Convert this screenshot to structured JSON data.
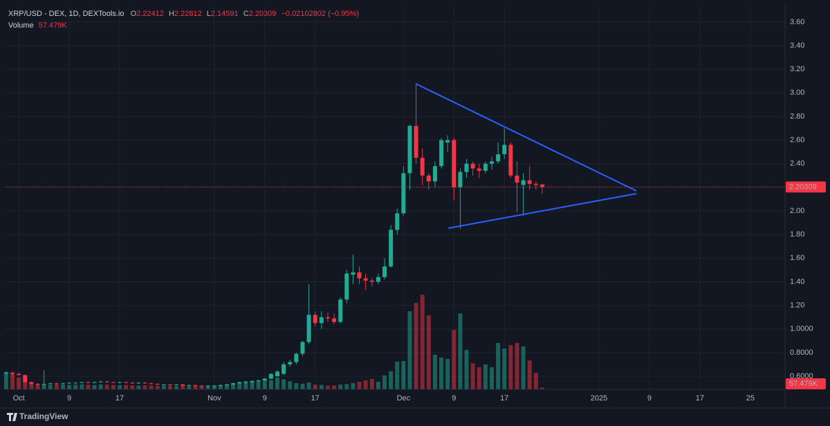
{
  "chart_data": {
    "type": "candlestick",
    "title": "XRP/USD - DEX, 1D, DEXTools.io",
    "ohlc_labels": [
      "O",
      "H",
      "L",
      "C"
    ],
    "change_label": "−0.02102802 (−0.95%)",
    "volume_name": "Volume",
    "volume_label": "57.479K",
    "up_color": "#22ab94",
    "down_color": "#f23645",
    "grid": true,
    "open": [
      0.625,
      0.63,
      0.62,
      0.61,
      0.55,
      0.535,
      0.53,
      0.535,
      0.54,
      0.535,
      0.54,
      0.545,
      0.545,
      0.55,
      0.545,
      0.55,
      0.555,
      0.55,
      0.545,
      0.55,
      0.545,
      0.54,
      0.545,
      0.54,
      0.535,
      0.53,
      0.53,
      0.525,
      0.53,
      0.52,
      0.525,
      0.52,
      0.515,
      0.52,
      0.52,
      0.525,
      0.53,
      0.54,
      0.55,
      0.55,
      0.56,
      0.565,
      0.58,
      0.6,
      0.62,
      0.7,
      0.72,
      0.79,
      0.89,
      1.12,
      1.05,
      1.1,
      1.09,
      1.06,
      1.25,
      1.46,
      1.48,
      1.43,
      1.41,
      1.4,
      1.44,
      1.53,
      1.84,
      1.98,
      2.32,
      2.72,
      2.45,
      2.3,
      2.25,
      2.38,
      2.58,
      2.6,
      2.2,
      2.33,
      2.4,
      2.36,
      2.34,
      2.4,
      2.42,
      2.48,
      2.56,
      2.3,
      2.22,
      2.26,
      2.23,
      2.22412
    ],
    "high": [
      0.64,
      0.64,
      0.63,
      0.615,
      0.555,
      0.54,
      0.65,
      0.545,
      0.545,
      0.545,
      0.55,
      0.55,
      0.555,
      0.555,
      0.555,
      0.56,
      0.56,
      0.555,
      0.555,
      0.555,
      0.55,
      0.55,
      0.55,
      0.545,
      0.54,
      0.535,
      0.535,
      0.535,
      0.535,
      0.53,
      0.53,
      0.525,
      0.525,
      0.525,
      0.53,
      0.535,
      0.545,
      0.555,
      0.56,
      0.565,
      0.57,
      0.585,
      0.625,
      0.65,
      0.72,
      0.74,
      0.8,
      0.9,
      1.38,
      1.15,
      1.15,
      1.14,
      1.13,
      1.27,
      1.5,
      1.63,
      1.53,
      1.47,
      1.43,
      1.47,
      1.6,
      1.88,
      2.02,
      2.38,
      2.73,
      3.08,
      2.53,
      2.32,
      2.42,
      2.62,
      2.64,
      2.62,
      2.36,
      2.44,
      2.42,
      2.4,
      2.42,
      2.46,
      2.58,
      2.7,
      2.58,
      2.42,
      2.32,
      2.38,
      2.25,
      2.22812
    ],
    "low": [
      0.615,
      0.61,
      0.61,
      0.545,
      0.53,
      0.525,
      0.525,
      0.53,
      0.53,
      0.53,
      0.535,
      0.54,
      0.54,
      0.54,
      0.54,
      0.545,
      0.545,
      0.54,
      0.54,
      0.54,
      0.535,
      0.535,
      0.535,
      0.53,
      0.525,
      0.525,
      0.52,
      0.52,
      0.515,
      0.515,
      0.515,
      0.51,
      0.51,
      0.515,
      0.515,
      0.52,
      0.525,
      0.535,
      0.54,
      0.545,
      0.555,
      0.56,
      0.575,
      0.595,
      0.61,
      0.68,
      0.7,
      0.77,
      0.87,
      1.02,
      1.0,
      1.06,
      1.04,
      1.05,
      1.22,
      1.38,
      1.38,
      1.33,
      1.36,
      1.38,
      1.42,
      1.52,
      1.8,
      1.96,
      2.18,
      2.4,
      2.22,
      2.18,
      2.2,
      2.36,
      2.5,
      2.09,
      1.85,
      2.28,
      2.3,
      2.28,
      2.32,
      2.35,
      2.4,
      2.44,
      2.28,
      1.99,
      1.96,
      2.18,
      2.18,
      2.14591
    ],
    "close": [
      0.63,
      0.62,
      0.61,
      0.55,
      0.535,
      0.53,
      0.535,
      0.54,
      0.535,
      0.54,
      0.545,
      0.545,
      0.55,
      0.545,
      0.55,
      0.555,
      0.55,
      0.545,
      0.55,
      0.545,
      0.54,
      0.545,
      0.54,
      0.535,
      0.53,
      0.53,
      0.525,
      0.53,
      0.52,
      0.525,
      0.52,
      0.515,
      0.52,
      0.52,
      0.525,
      0.53,
      0.54,
      0.55,
      0.55,
      0.56,
      0.565,
      0.58,
      0.62,
      0.64,
      0.7,
      0.72,
      0.79,
      0.89,
      1.12,
      1.05,
      1.1,
      1.09,
      1.06,
      1.25,
      1.47,
      1.48,
      1.43,
      1.41,
      1.4,
      1.44,
      1.53,
      1.84,
      1.98,
      2.32,
      2.72,
      2.45,
      2.3,
      2.25,
      2.38,
      2.6,
      2.6,
      2.2,
      2.33,
      2.4,
      2.36,
      2.34,
      2.4,
      2.42,
      2.48,
      2.56,
      2.3,
      2.24,
      2.26,
      2.23,
      2.22,
      2.20309
    ],
    "volume": [
      555000,
      490000,
      380000,
      310000,
      200000,
      180000,
      160000,
      150000,
      160000,
      150000,
      140000,
      150000,
      160000,
      150000,
      140000,
      160000,
      150000,
      140000,
      130000,
      140000,
      130000,
      120000,
      130000,
      120000,
      110000,
      120000,
      110000,
      100000,
      110000,
      100000,
      110000,
      100000,
      110000,
      120000,
      130000,
      160000,
      200000,
      230000,
      260000,
      240000,
      280000,
      330000,
      300000,
      380000,
      320000,
      260000,
      200000,
      180000,
      220000,
      150000,
      140000,
      120000,
      130000,
      150000,
      170000,
      200000,
      245000,
      290000,
      335000,
      245000,
      445000,
      580000,
      890000,
      910000,
      2510000,
      2780000,
      3040000,
      2380000,
      1110000,
      1020000,
      980000,
      1910000,
      2440000,
      1270000,
      840000,
      710000,
      800000,
      710000,
      1490000,
      1310000,
      1420000,
      1490000,
      1380000,
      930000,
      530000,
      57479
    ],
    "xlim": [
      -0.1,
      123.5
    ],
    "xticks": [
      {
        "value": 2,
        "label": "Oct"
      },
      {
        "value": 10,
        "label": "9"
      },
      {
        "value": 18,
        "label": "17"
      },
      {
        "value": 33,
        "label": "Nov"
      },
      {
        "value": 41,
        "label": "9"
      },
      {
        "value": 49,
        "label": "17"
      },
      {
        "value": 63,
        "label": "Dec"
      },
      {
        "value": 71,
        "label": "9"
      },
      {
        "value": 79,
        "label": "17"
      },
      {
        "value": 94,
        "label": "2025"
      },
      {
        "value": 102,
        "label": "9"
      },
      {
        "value": 110,
        "label": "17"
      },
      {
        "value": 118,
        "label": "25"
      }
    ],
    "ylim": [
      0.489,
      3.74
    ],
    "yticks": [
      {
        "value": 0.6,
        "label": "0.6000"
      },
      {
        "value": 0.8,
        "label": "0.8000"
      },
      {
        "value": 1.0,
        "label": "1.0000"
      },
      {
        "value": 1.2,
        "label": "1.20"
      },
      {
        "value": 1.4,
        "label": "1.40"
      },
      {
        "value": 1.6,
        "label": "1.60"
      },
      {
        "value": 1.8,
        "label": "1.80"
      },
      {
        "value": 2.0,
        "label": "2.00"
      },
      {
        "value": 2.2,
        "label": "2.20"
      },
      {
        "value": 2.4,
        "label": "2.40"
      },
      {
        "value": 2.6,
        "label": "2.60"
      },
      {
        "value": 2.8,
        "label": "2.80"
      },
      {
        "value": 3.0,
        "label": "3.00"
      },
      {
        "value": 3.2,
        "label": "3.20"
      },
      {
        "value": 3.4,
        "label": "3.40"
      },
      {
        "value": 3.6,
        "label": "3.60"
      }
    ],
    "vlim": [
      0,
      12330000
    ]
  }
}
